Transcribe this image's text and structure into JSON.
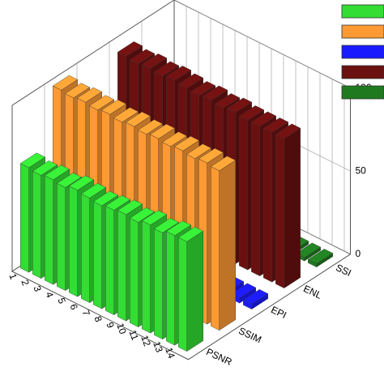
{
  "chart_data": {
    "type": "bar3d",
    "categories": [
      "1",
      "2",
      "3",
      "4",
      "5",
      "6",
      "7",
      "8",
      "9",
      "10",
      "11",
      "12",
      "13",
      "14"
    ],
    "series": [
      {
        "name": "PSNR",
        "color": "#33dd33",
        "values": [
          63,
          62,
          63,
          62,
          64,
          63,
          62,
          63,
          64,
          63,
          65,
          64,
          66,
          66
        ]
      },
      {
        "name": "SSIM",
        "color": "#ff9933",
        "values": [
          97,
          96,
          97,
          96,
          97,
          96,
          97,
          96,
          97,
          96,
          97,
          96,
          97,
          96
        ]
      },
      {
        "name": "EPI",
        "color": "#1a1aff",
        "values": [
          3,
          3,
          3,
          3,
          3,
          3,
          3,
          3,
          3,
          3,
          3,
          3,
          3,
          3
        ]
      },
      {
        "name": "ENL",
        "color": "#6b1010",
        "values": [
          92,
          91,
          92,
          91,
          92,
          91,
          90,
          91,
          90,
          91,
          90,
          90,
          90,
          90
        ]
      },
      {
        "name": "SSI",
        "color": "#1f7a1f",
        "values": [
          2,
          2,
          2,
          2,
          2,
          2,
          2,
          2,
          2,
          2,
          2,
          2,
          2,
          2
        ]
      }
    ],
    "zlim": [
      0,
      100
    ],
    "zticks": [
      0,
      50,
      100
    ]
  }
}
